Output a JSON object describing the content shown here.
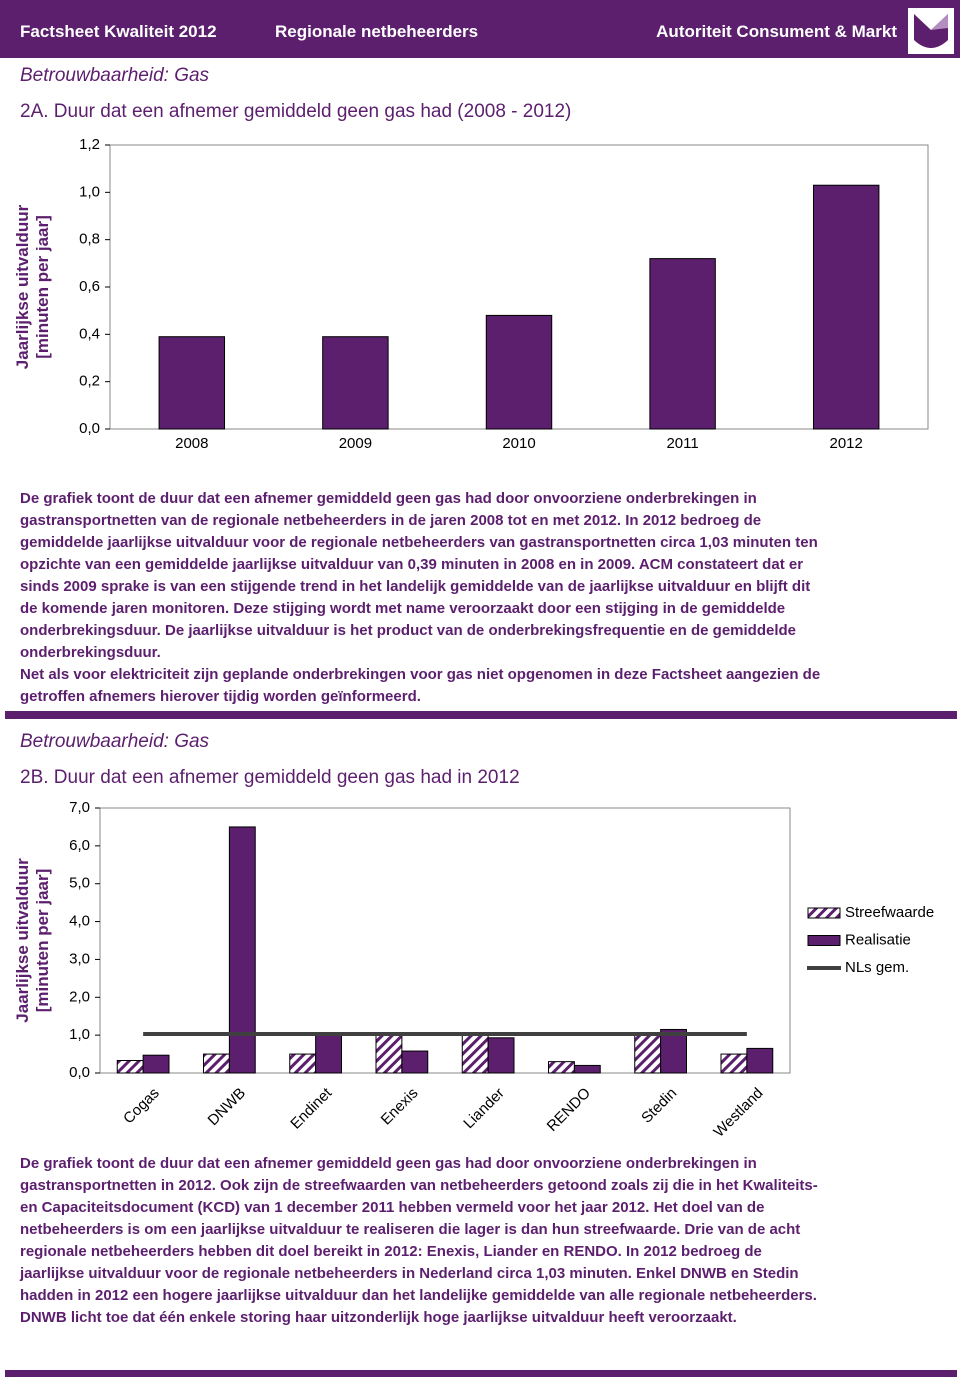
{
  "header": {
    "left": "Factsheet Kwaliteit 2012",
    "center": "Regionale netbeheerders",
    "right": "Autoriteit Consument & Markt"
  },
  "sections": [
    {
      "heading": "Betrouwbaarheid: Gas",
      "body": [
        "De grafiek toont de duur dat een afnemer gemiddeld geen gas had door onvoorziene onderbrekingen in",
        "gastransportnetten van de regionale netbeheerders in de jaren 2008 tot en met 2012. In 2012 bedroeg de",
        "gemiddelde jaarlijkse uitvalduur voor de regionale netbeheerders van gastransportnetten circa 1,03 minuten ten",
        "opzichte van een gemiddelde jaarlijkse uitvalduur van 0,39 minuten in 2008 en in 2009. ACM constateert dat er",
        "sinds 2009 sprake is van een stijgende trend in het landelijk gemiddelde van de jaarlijkse uitvalduur en blijft dit",
        "de komende jaren monitoren. Deze stijging wordt met name veroorzaakt door een stijging in de gemiddelde",
        "onderbrekingsduur. De jaarlijkse uitvalduur is het product van de onderbrekingsfrequentie en de gemiddelde",
        "onderbrekingsduur.",
        "Net als voor elektriciteit zijn geplande onderbrekingen voor gas niet opgenomen in deze Factsheet aangezien de",
        "getroffen afnemers hierover tijdig worden geïnformeerd."
      ]
    },
    {
      "heading": "Betrouwbaarheid: Gas",
      "body": [
        "De grafiek toont de duur dat een afnemer gemiddeld geen gas had door onvoorziene onderbrekingen in",
        "gastransportnetten in 2012. Ook zijn de streefwaarden van netbeheerders getoond zoals zij die in het Kwaliteits-",
        "en Capaciteitsdocument (KCD) van 1 december 2011 hebben vermeld voor het jaar 2012. Het doel van de",
        "netbeheerders is om een jaarlijkse uitvalduur te realiseren die lager is dan hun streefwaarde. Drie van de acht",
        "regionale netbeheerders hebben dit doel bereikt in 2012: Enexis, Liander en RENDO. In 2012 bedroeg de",
        "jaarlijkse uitvalduur voor de regionale netbeheerders in Nederland circa 1,03 minuten. Enkel DNWB en Stedin",
        "hadden in 2012 een hogere jaarlijkse uitvalduur dan het landelijke gemiddelde van alle regionale netbeheerders.",
        "DNWB licht toe dat één enkele storing haar uitzonderlijk hoge jaarlijkse uitvalduur heeft veroorzaakt."
      ]
    }
  ],
  "chart_data": [
    {
      "type": "bar",
      "title": "2A. Duur dat een afnemer gemiddeld geen gas had (2008 - 2012)",
      "y_label": [
        "Jaarlijkse uitvalduur",
        "[minuten per jaar]"
      ],
      "categories": [
        "2008",
        "2009",
        "2010",
        "2011",
        "2012"
      ],
      "values": [
        0.39,
        0.39,
        0.48,
        0.72,
        1.03
      ],
      "color": "#5c1f6e",
      "ylim": [
        0,
        1.2
      ],
      "yticks": [
        {
          "value": 0,
          "label": "0,0"
        },
        {
          "value": 0.2,
          "label": "0,2"
        },
        {
          "value": 0.4,
          "label": "0,4"
        },
        {
          "value": 0.6,
          "label": "0,6"
        },
        {
          "value": 0.8,
          "label": "0,8"
        },
        {
          "value": 1.0,
          "label": "1,0"
        },
        {
          "value": 1.2,
          "label": "1,2"
        }
      ],
      "grid": false
    },
    {
      "type": "bar",
      "title": "2B. Duur dat een afnemer gemiddeld geen gas had in 2012",
      "y_label": [
        "Jaarlijkse uitvalduur",
        "[minuten per jaar]"
      ],
      "categories": [
        "Cogas",
        "DNWB",
        "Endinet",
        "Enexis",
        "Liander",
        "RENDO",
        "Stedin",
        "Westland"
      ],
      "series": [
        {
          "name": "Streefwaarde",
          "color": "#5c1f6e",
          "pattern": "hatch",
          "values": [
            0.33,
            0.5,
            0.5,
            1.0,
            1.0,
            0.3,
            1.0,
            0.5
          ]
        },
        {
          "name": "Realisatie",
          "color": "#5c1f6e",
          "values": [
            0.47,
            6.5,
            1.0,
            0.58,
            0.93,
            0.2,
            1.15,
            0.65
          ]
        },
        {
          "name": "NLs gem.",
          "type": "line",
          "color": "#404040",
          "values": [
            1.03,
            1.03,
            1.03,
            1.03,
            1.03,
            1.03,
            1.03,
            1.03
          ]
        }
      ],
      "ylim": [
        0,
        7
      ],
      "yticks": [
        {
          "value": 0,
          "label": "0,0"
        },
        {
          "value": 1,
          "label": "1,0"
        },
        {
          "value": 2,
          "label": "2,0"
        },
        {
          "value": 3,
          "label": "3,0"
        },
        {
          "value": 4,
          "label": "4,0"
        },
        {
          "value": 5,
          "label": "5,0"
        },
        {
          "value": 6,
          "label": "6,0"
        },
        {
          "value": 7,
          "label": "7,0"
        }
      ],
      "grid": false,
      "legend": "right",
      "x_label_rotation": -45
    }
  ]
}
